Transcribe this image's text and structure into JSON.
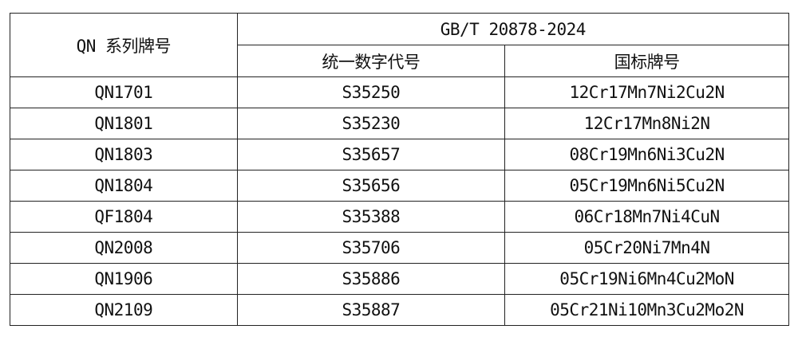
{
  "header": {
    "series_col": "QN 系列牌号",
    "standard": "GB/T 20878-2024",
    "code_col": "统一数字代号",
    "grade_col": "国标牌号"
  },
  "rows": [
    {
      "qn": "QN1701",
      "code": "S35250",
      "grade": "12Cr17Mn7Ni2Cu2N"
    },
    {
      "qn": "QN1801",
      "code": "S35230",
      "grade": "12Cr17Mn8Ni2N"
    },
    {
      "qn": "QN1803",
      "code": "S35657",
      "grade": "08Cr19Mn6Ni3Cu2N"
    },
    {
      "qn": "QN1804",
      "code": "S35656",
      "grade": "05Cr19Mn6Ni5Cu2N"
    },
    {
      "qn": "QF1804",
      "code": "S35388",
      "grade": "06Cr18Mn7Ni4CuN"
    },
    {
      "qn": "QN2008",
      "code": "S35706",
      "grade": "05Cr20Ni7Mn4N"
    },
    {
      "qn": "QN1906",
      "code": "S35886",
      "grade": "05Cr19Ni6Mn4Cu2MoN"
    },
    {
      "qn": "QN2109",
      "code": "S35887",
      "grade": "05Cr21Ni10Mn3Cu2Mo2N"
    }
  ]
}
